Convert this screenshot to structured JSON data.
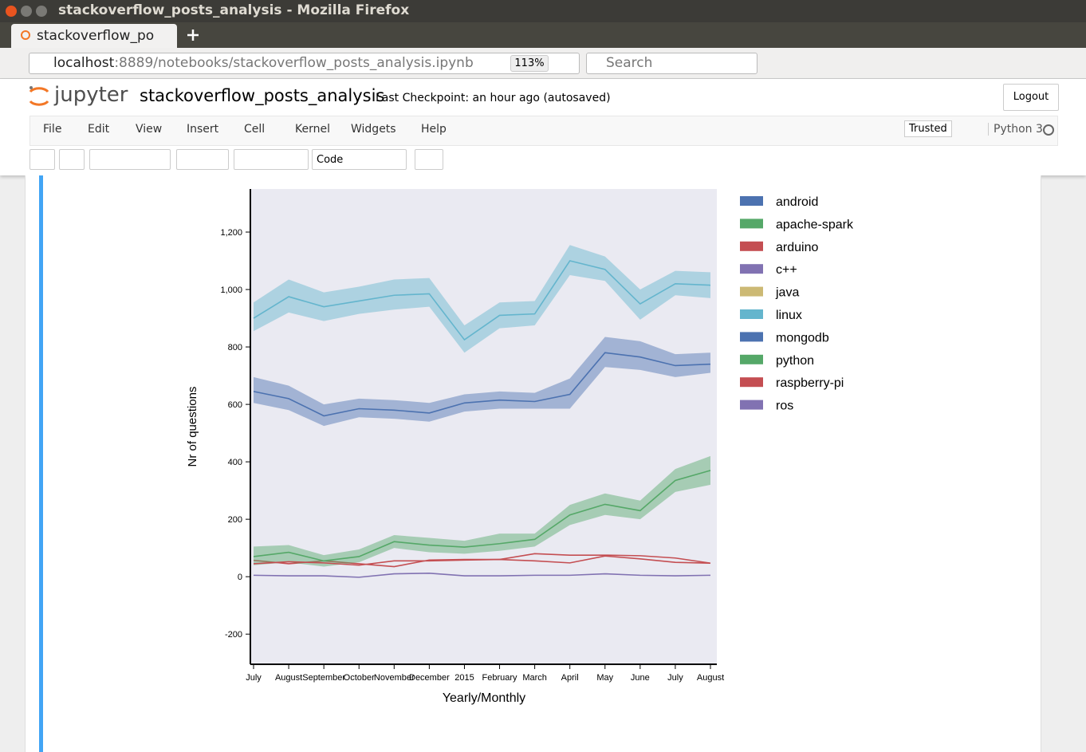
{
  "browser": {
    "window_title": "stackoverflow_posts_analysis - Mozilla Firefox",
    "tab_title": "stackoverflow_po",
    "url_host": "localhost",
    "url_path": ":8889/notebooks/stackoverflow_posts_analysis.ipynb",
    "zoom": "113%",
    "search_placeholder": "Search"
  },
  "jupyter": {
    "logo": "jupyter",
    "notebook_name": "stackoverflow_posts_analysis",
    "checkpoint": "Last Checkpoint: an hour ago (autosaved)",
    "logout": "Logout",
    "menu": [
      "File",
      "Edit",
      "View",
      "Insert",
      "Cell",
      "Kernel",
      "Widgets",
      "Help"
    ],
    "trusted": "Trusted",
    "kernel": "Python 3",
    "cell_type": "Code"
  },
  "chart_data": {
    "type": "line",
    "xlabel": "Yearly/Monthly",
    "ylabel": "Nr of questions",
    "categories": [
      "July",
      "August",
      "September",
      "October",
      "November",
      "December",
      "2015",
      "February",
      "March",
      "April",
      "May",
      "June",
      "July",
      "August"
    ],
    "ylim": [
      -305,
      1350
    ],
    "yticks": [
      -200,
      0,
      200,
      400,
      600,
      800,
      {
        "value": 1000,
        "label": "1,000"
      },
      {
        "value": 1200,
        "label": "1,200"
      }
    ],
    "legend": "outside-right",
    "background": "#eaeaf2",
    "series": [
      {
        "name": "android",
        "color": "#4c72b0"
      },
      {
        "name": "apache-spark",
        "color": "#55a868"
      },
      {
        "name": "arduino",
        "color": "#c44e52",
        "values": [
          57,
          45,
          55,
          45,
          35,
          58,
          60,
          60,
          80,
          75,
          75,
          73,
          65,
          47
        ]
      },
      {
        "name": "c++",
        "color": "#8172b2"
      },
      {
        "name": "java",
        "color": "#ccb974"
      },
      {
        "name": "linux",
        "color": "#64b5cd",
        "values": [
          900,
          975,
          940,
          960,
          980,
          985,
          825,
          910,
          915,
          1100,
          1070,
          950,
          1020,
          1015
        ],
        "lower": [
          855,
          920,
          890,
          915,
          930,
          940,
          780,
          865,
          875,
          1050,
          1030,
          895,
          980,
          970
        ],
        "upper": [
          955,
          1035,
          990,
          1010,
          1035,
          1040,
          875,
          955,
          960,
          1155,
          1115,
          1000,
          1065,
          1060
        ]
      },
      {
        "name": "mongodb",
        "color": "#4c72b0",
        "values": [
          645,
          620,
          560,
          585,
          580,
          570,
          605,
          615,
          610,
          635,
          780,
          765,
          735,
          740
        ],
        "lower": [
          605,
          580,
          525,
          555,
          550,
          540,
          575,
          585,
          585,
          585,
          730,
          720,
          695,
          710
        ],
        "upper": [
          695,
          665,
          600,
          620,
          615,
          605,
          635,
          645,
          640,
          690,
          835,
          820,
          775,
          780
        ]
      },
      {
        "name": "python",
        "color": "#55a868",
        "values": [
          70,
          85,
          55,
          70,
          122,
          110,
          103,
          115,
          130,
          215,
          252,
          230,
          335,
          370
        ],
        "lower": [
          40,
          50,
          35,
          50,
          100,
          85,
          80,
          90,
          105,
          180,
          215,
          200,
          295,
          320
        ],
        "upper": [
          105,
          110,
          75,
          95,
          145,
          135,
          125,
          150,
          150,
          250,
          290,
          265,
          375,
          420
        ]
      },
      {
        "name": "raspberry-pi",
        "color": "#c44e52",
        "values": [
          45,
          52,
          48,
          40,
          55,
          55,
          58,
          60,
          55,
          48,
          72,
          62,
          50,
          47
        ]
      },
      {
        "name": "ros",
        "color": "#8172b2",
        "values": [
          5,
          3,
          3,
          -2,
          10,
          12,
          3,
          3,
          5,
          5,
          10,
          5,
          3,
          5
        ]
      }
    ]
  }
}
